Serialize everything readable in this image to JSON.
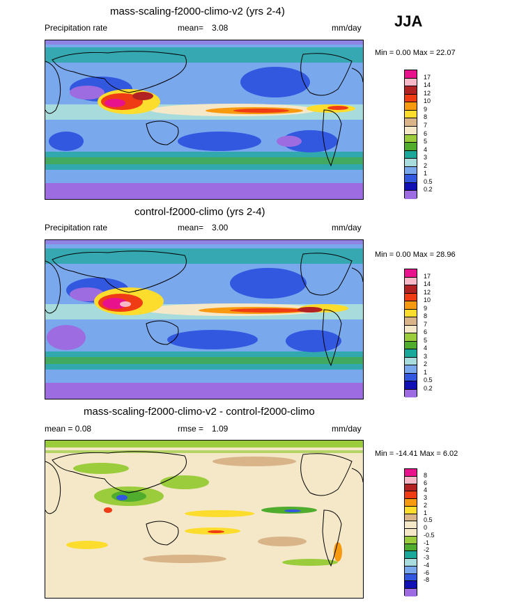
{
  "season": "JJA",
  "panels": [
    {
      "title": "mass-scaling-f2000-climo-v2 (yrs 2-4)",
      "left_label": "Precipitation rate",
      "mean_label": "mean=",
      "mean_value": "3.08",
      "units": "mm/day",
      "minmax": "Min =   0.00 Max =  22.07"
    },
    {
      "title": "control-f2000-climo (yrs 2-4)",
      "left_label": "Precipitation rate",
      "mean_label": "mean=",
      "mean_value": "3.00",
      "units": "mm/day",
      "minmax": "Min =   0.00 Max =  28.96"
    },
    {
      "title": "mass-scaling-f2000-climo-v2 - control-f2000-climo",
      "left_label": "mean =   0.08",
      "mean_label": "rmse =",
      "mean_value": "1.09",
      "units": "mm/day",
      "minmax": "Min = -14.41 Max =   6.02"
    }
  ],
  "colorbar_precip": {
    "ticks": [
      "17",
      "14",
      "12",
      "10",
      "9",
      "8",
      "7",
      "6",
      "5",
      "4",
      "3",
      "2",
      "1",
      "0.5",
      "0.2"
    ],
    "colors": [
      "#e8128c",
      "#f7b8c8",
      "#b22222",
      "#f03c14",
      "#f89a10",
      "#fcdc2c",
      "#d8b488",
      "#f5e8c8",
      "#9acc3c",
      "#4fac2c",
      "#1aa89a",
      "#a8dcdc",
      "#7aa8ec",
      "#3258e0",
      "#1010b4",
      "#9c6ce0"
    ]
  },
  "colorbar_diff": {
    "ticks": [
      "8",
      "6",
      "4",
      "3",
      "2",
      "1",
      "0.5",
      "0",
      "-0.5",
      "-1",
      "-2",
      "-3",
      "-4",
      "-6",
      "-8"
    ],
    "colors": [
      "#e8128c",
      "#f7b8c8",
      "#b22222",
      "#f03c14",
      "#f89a10",
      "#fcdc2c",
      "#d8b488",
      "#f5e8c8",
      "#f5e8c8",
      "#9acc3c",
      "#4fac2c",
      "#1aa89a",
      "#a8dcdc",
      "#7aa8ec",
      "#3258e0",
      "#1010b4",
      "#9c6ce0"
    ]
  }
}
